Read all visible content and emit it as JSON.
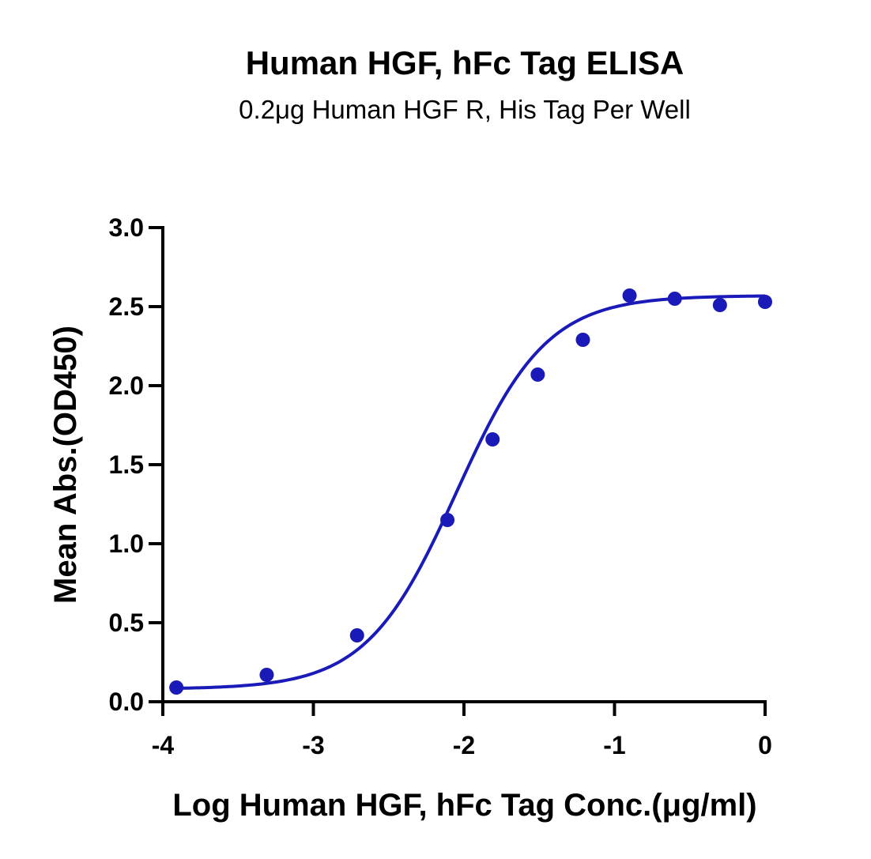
{
  "chart_data": {
    "type": "scatter",
    "title": "Human HGF, hFc Tag ELISA",
    "subtitle": "0.2μg Human HGF R, His Tag Per Well",
    "xlabel": "Log Human HGF, hFc Tag Conc.(μg/ml)",
    "ylabel": "Mean Abs.(OD450)",
    "xlim": [
      -4,
      0
    ],
    "ylim": [
      0,
      3.0
    ],
    "x_ticks": [
      -4,
      -3,
      -2,
      -1,
      0
    ],
    "x_tick_labels": [
      "-4",
      "-3",
      "-2",
      "-1",
      "0"
    ],
    "y_ticks": [
      0,
      0.5,
      1.0,
      1.5,
      2.0,
      2.5,
      3.0
    ],
    "y_tick_labels": [
      "0.0",
      "0.5",
      "1.0",
      "1.5",
      "2.0",
      "2.5",
      "3.0"
    ],
    "grid": false,
    "legend": "none",
    "series": [
      {
        "color": "#1a1ab8",
        "x": [
          -3.91,
          -3.31,
          -2.71,
          -2.11,
          -1.81,
          -1.51,
          -1.21,
          -0.9,
          -0.6,
          -0.3,
          0.0
        ],
        "y": [
          0.09,
          0.17,
          0.42,
          1.15,
          1.66,
          2.07,
          2.29,
          2.57,
          2.55,
          2.51,
          2.53
        ]
      }
    ],
    "fit_curve": {
      "color": "#1a1ab8",
      "bottom": 0.08,
      "top": 2.57,
      "log_ec50": -2.05,
      "hill_slope": 1.45
    }
  }
}
